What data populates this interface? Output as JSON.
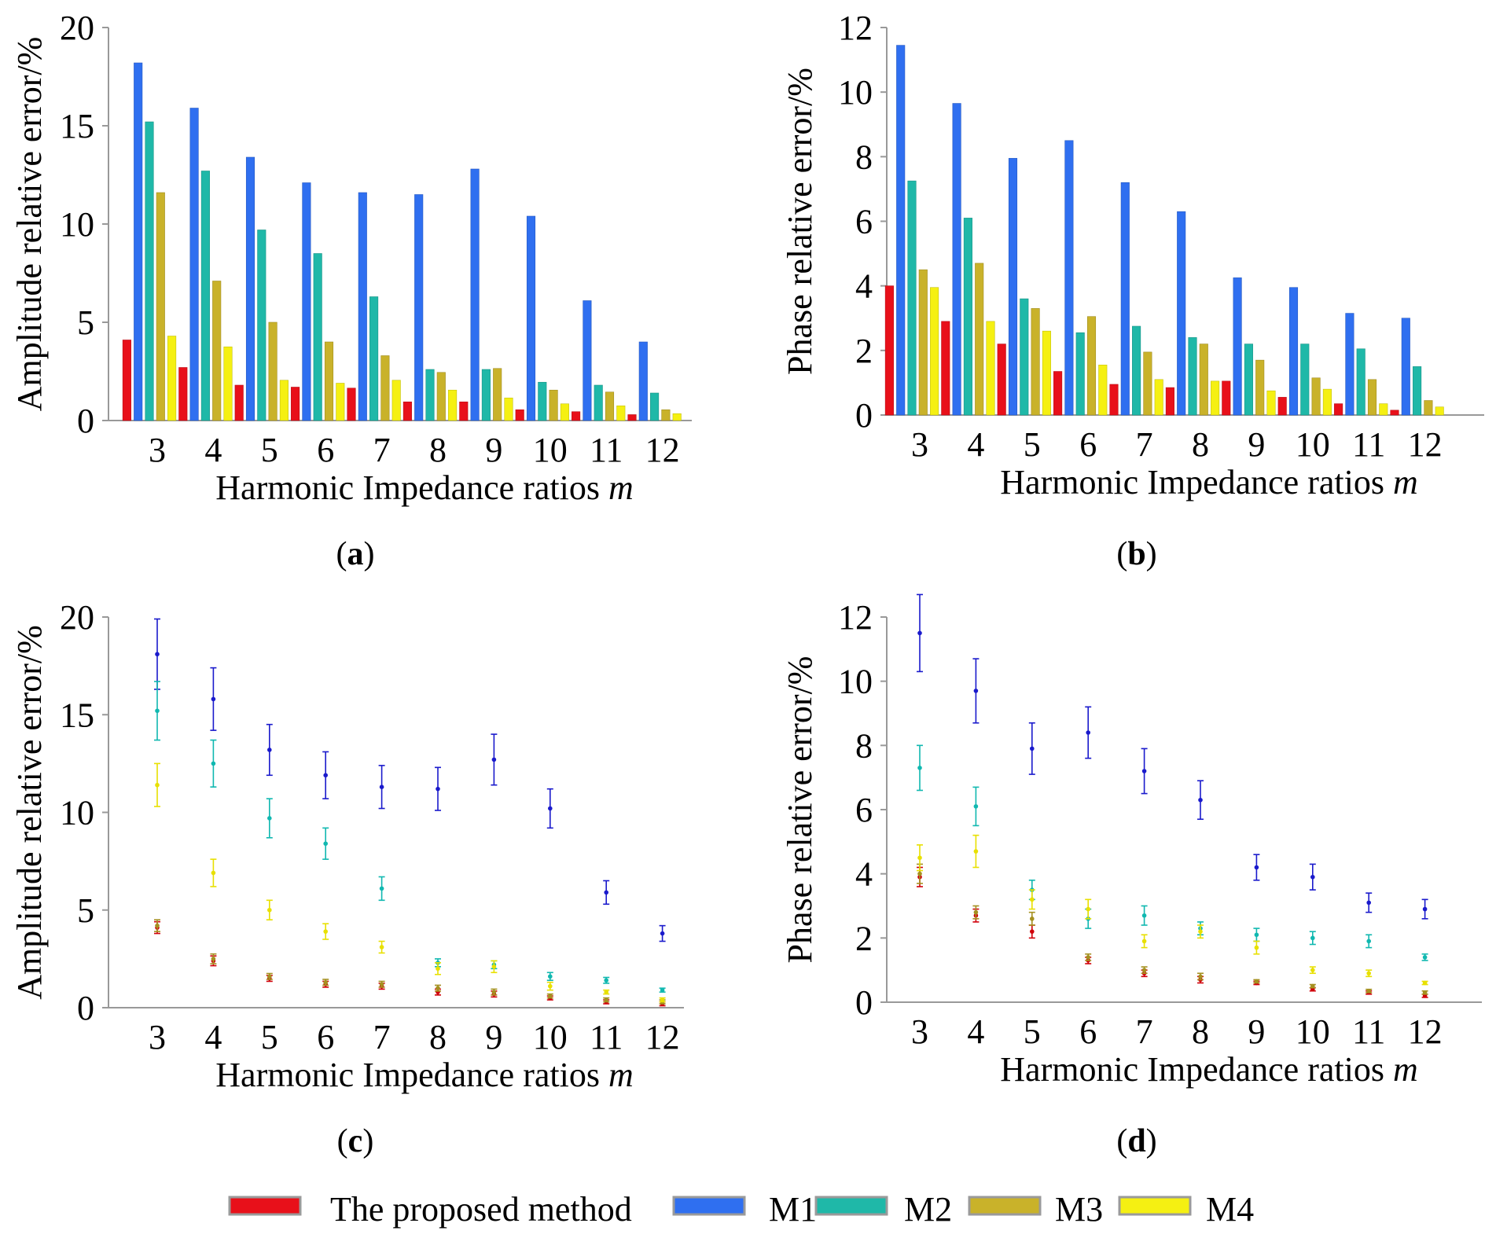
{
  "colors": {
    "proposed": "#e8101a",
    "M1": "#2f6ff0",
    "M2": "#1fb8a8",
    "M3": "#c9b22a",
    "M4": "#f5f012"
  },
  "legend": [
    {
      "key": "proposed",
      "label": "The proposed method"
    },
    {
      "key": "M1",
      "label": "M1"
    },
    {
      "key": "M2",
      "label": "M2"
    },
    {
      "key": "M3",
      "label": "M3"
    },
    {
      "key": "M4",
      "label": "M4"
    }
  ],
  "panels": {
    "a": {
      "label": "(a)",
      "label_letter": "a"
    },
    "b": {
      "label": "(b)",
      "label_letter": "b"
    },
    "c": {
      "label": "(c)",
      "label_letter": "c"
    },
    "d": {
      "label": "(d)",
      "label_letter": "d"
    }
  },
  "chart_data": [
    {
      "id": "a",
      "type": "bar",
      "xlabel": "Harmonic Impedance  ratios ",
      "xlabel_italic": "m",
      "ylabel": "Amplitude relative error/%",
      "ylim": [
        0,
        20
      ],
      "yticks": [
        0,
        5,
        10,
        15,
        20
      ],
      "categories": [
        "3",
        "4",
        "5",
        "6",
        "7",
        "8",
        "9",
        "10",
        "11",
        "12"
      ],
      "series": [
        {
          "key": "proposed",
          "values": [
            4.1,
            2.7,
            1.8,
            1.7,
            1.65,
            0.95,
            0.95,
            0.55,
            0.45,
            0.3
          ]
        },
        {
          "key": "M1",
          "values": [
            18.2,
            15.9,
            13.4,
            12.1,
            11.6,
            11.5,
            12.8,
            10.4,
            6.1,
            4.0
          ]
        },
        {
          "key": "M2",
          "values": [
            15.2,
            12.7,
            9.7,
            8.5,
            6.3,
            2.6,
            2.6,
            1.95,
            1.8,
            1.4
          ]
        },
        {
          "key": "M3",
          "values": [
            11.6,
            7.1,
            5.0,
            4.0,
            3.3,
            2.45,
            2.65,
            1.55,
            1.45,
            0.55
          ]
        },
        {
          "key": "M4",
          "values": [
            4.3,
            3.75,
            2.05,
            1.9,
            2.05,
            1.55,
            1.15,
            0.85,
            0.75,
            0.35
          ]
        }
      ]
    },
    {
      "id": "b",
      "type": "bar",
      "xlabel": "Harmonic Impedance  ratios ",
      "xlabel_italic": "m",
      "ylabel": "Phase relative error/%",
      "ylim": [
        0,
        12
      ],
      "yticks": [
        0,
        2,
        4,
        6,
        8,
        10,
        12
      ],
      "categories": [
        "3",
        "4",
        "5",
        "6",
        "7",
        "8",
        "9",
        "10",
        "11",
        "12"
      ],
      "series": [
        {
          "key": "proposed",
          "values": [
            4.0,
            2.9,
            2.2,
            1.35,
            0.95,
            0.85,
            1.05,
            0.55,
            0.35,
            0.15
          ]
        },
        {
          "key": "M1",
          "values": [
            11.45,
            9.65,
            7.95,
            8.5,
            7.2,
            6.3,
            4.25,
            3.95,
            3.15,
            3.0
          ]
        },
        {
          "key": "M2",
          "values": [
            7.25,
            6.1,
            3.6,
            2.55,
            2.75,
            2.4,
            2.2,
            2.2,
            2.05,
            1.5
          ]
        },
        {
          "key": "M3",
          "values": [
            4.5,
            4.7,
            3.3,
            3.05,
            1.95,
            2.2,
            1.7,
            1.15,
            1.1,
            0.45
          ]
        },
        {
          "key": "M4",
          "values": [
            3.95,
            2.9,
            2.6,
            1.55,
            1.1,
            1.05,
            0.75,
            0.8,
            0.35,
            0.25
          ]
        }
      ]
    },
    {
      "id": "c",
      "type": "scatter",
      "xlabel": "Harmonic Impedance  ratios ",
      "xlabel_italic": "m",
      "ylabel": "Amplitude relative error/%",
      "ylim": [
        0,
        20
      ],
      "yticks": [
        0,
        5,
        10,
        15,
        20
      ],
      "categories": [
        "3",
        "4",
        "5",
        "6",
        "7",
        "8",
        "9",
        "10",
        "11",
        "12"
      ],
      "series": [
        {
          "key": "proposed",
          "values": [
            4.1,
            2.4,
            1.5,
            1.2,
            1.1,
            0.8,
            0.7,
            0.5,
            0.3,
            0.2
          ],
          "err": [
            0.3,
            0.25,
            0.15,
            0.15,
            0.15,
            0.15,
            0.15,
            0.1,
            0.1,
            0.1
          ]
        },
        {
          "key": "M1",
          "values": [
            18.1,
            15.8,
            13.2,
            11.9,
            11.3,
            11.2,
            12.7,
            10.2,
            5.9,
            3.8
          ],
          "err": [
            1.8,
            1.6,
            1.3,
            1.2,
            1.1,
            1.1,
            1.3,
            1.0,
            0.6,
            0.4
          ]
        },
        {
          "key": "M2",
          "values": [
            15.2,
            12.5,
            9.7,
            8.4,
            6.1,
            2.3,
            2.2,
            1.6,
            1.4,
            0.9
          ],
          "err": [
            1.5,
            1.2,
            1.0,
            0.8,
            0.6,
            0.2,
            0.2,
            0.2,
            0.15,
            0.1
          ]
        },
        {
          "key": "M3",
          "values": [
            4.2,
            2.5,
            1.6,
            1.3,
            1.2,
            1.0,
            0.8,
            0.6,
            0.4,
            0.3
          ],
          "err": [
            0.3,
            0.25,
            0.15,
            0.15,
            0.15,
            0.15,
            0.15,
            0.1,
            0.1,
            0.1
          ]
        },
        {
          "key": "M4",
          "values": [
            11.4,
            6.9,
            5.0,
            3.9,
            3.1,
            2.0,
            2.1,
            1.1,
            0.8,
            0.4
          ],
          "err": [
            1.1,
            0.7,
            0.5,
            0.4,
            0.3,
            0.3,
            0.3,
            0.2,
            0.1,
            0.1
          ]
        }
      ]
    },
    {
      "id": "d",
      "type": "scatter",
      "xlabel": "Harmonic Impedance  ratios ",
      "xlabel_italic": "m",
      "ylabel": "Phase relative error/%",
      "ylim": [
        0,
        12
      ],
      "yticks": [
        0,
        2,
        4,
        6,
        8,
        10,
        12
      ],
      "categories": [
        "3",
        "4",
        "5",
        "6",
        "7",
        "8",
        "9",
        "10",
        "11",
        "12"
      ],
      "series": [
        {
          "key": "proposed",
          "values": [
            3.9,
            2.7,
            2.2,
            1.3,
            0.9,
            0.7,
            0.6,
            0.4,
            0.3,
            0.2
          ],
          "err": [
            0.3,
            0.2,
            0.2,
            0.1,
            0.1,
            0.1,
            0.05,
            0.05,
            0.05,
            0.05
          ]
        },
        {
          "key": "M1",
          "values": [
            11.5,
            9.7,
            7.9,
            8.4,
            7.2,
            6.3,
            4.2,
            3.9,
            3.1,
            2.9
          ],
          "err": [
            1.2,
            1.0,
            0.8,
            0.8,
            0.7,
            0.6,
            0.4,
            0.4,
            0.3,
            0.3
          ]
        },
        {
          "key": "M2",
          "values": [
            7.3,
            6.1,
            3.5,
            2.6,
            2.7,
            2.3,
            2.1,
            2.0,
            1.9,
            1.4
          ],
          "err": [
            0.7,
            0.6,
            0.3,
            0.3,
            0.3,
            0.2,
            0.2,
            0.2,
            0.2,
            0.1
          ]
        },
        {
          "key": "M3",
          "values": [
            4.0,
            2.8,
            2.6,
            1.4,
            1.0,
            0.8,
            0.65,
            0.5,
            0.35,
            0.3
          ],
          "err": [
            0.3,
            0.2,
            0.2,
            0.1,
            0.1,
            0.1,
            0.05,
            0.05,
            0.05,
            0.05
          ]
        },
        {
          "key": "M4",
          "values": [
            4.5,
            4.7,
            3.2,
            2.9,
            1.9,
            2.2,
            1.7,
            1.0,
            0.9,
            0.6
          ],
          "err": [
            0.4,
            0.5,
            0.3,
            0.3,
            0.2,
            0.2,
            0.2,
            0.1,
            0.1,
            0.05
          ]
        }
      ]
    }
  ]
}
